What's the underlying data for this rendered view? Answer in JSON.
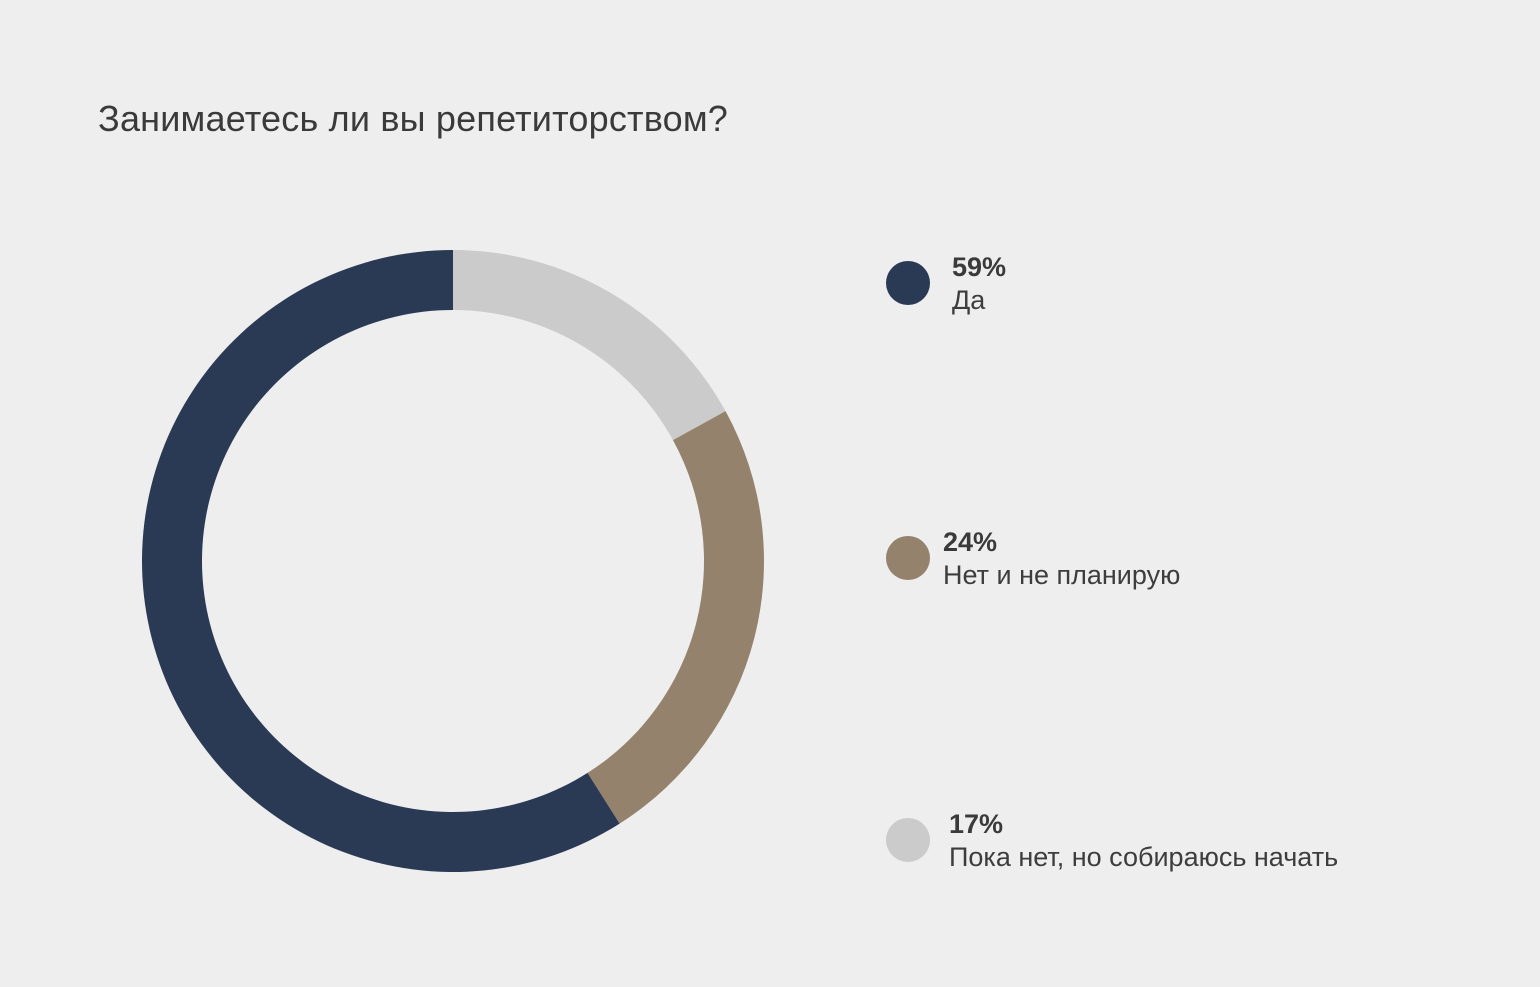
{
  "chart_data": {
    "type": "pie",
    "variant": "donut",
    "title": "Занимаетесь ли вы репетиторством?",
    "slices": [
      {
        "label": "Да",
        "value": 59,
        "value_label": "59%",
        "color": "#2a3a55"
      },
      {
        "label": "Нет и не планирую",
        "value": 24,
        "value_label": "24%",
        "color": "#94826c"
      },
      {
        "label": "Пока нет, но собираюсь начать",
        "value": 17,
        "value_label": "17%",
        "color": "#cbcbcb"
      }
    ],
    "legend_position": "right"
  }
}
